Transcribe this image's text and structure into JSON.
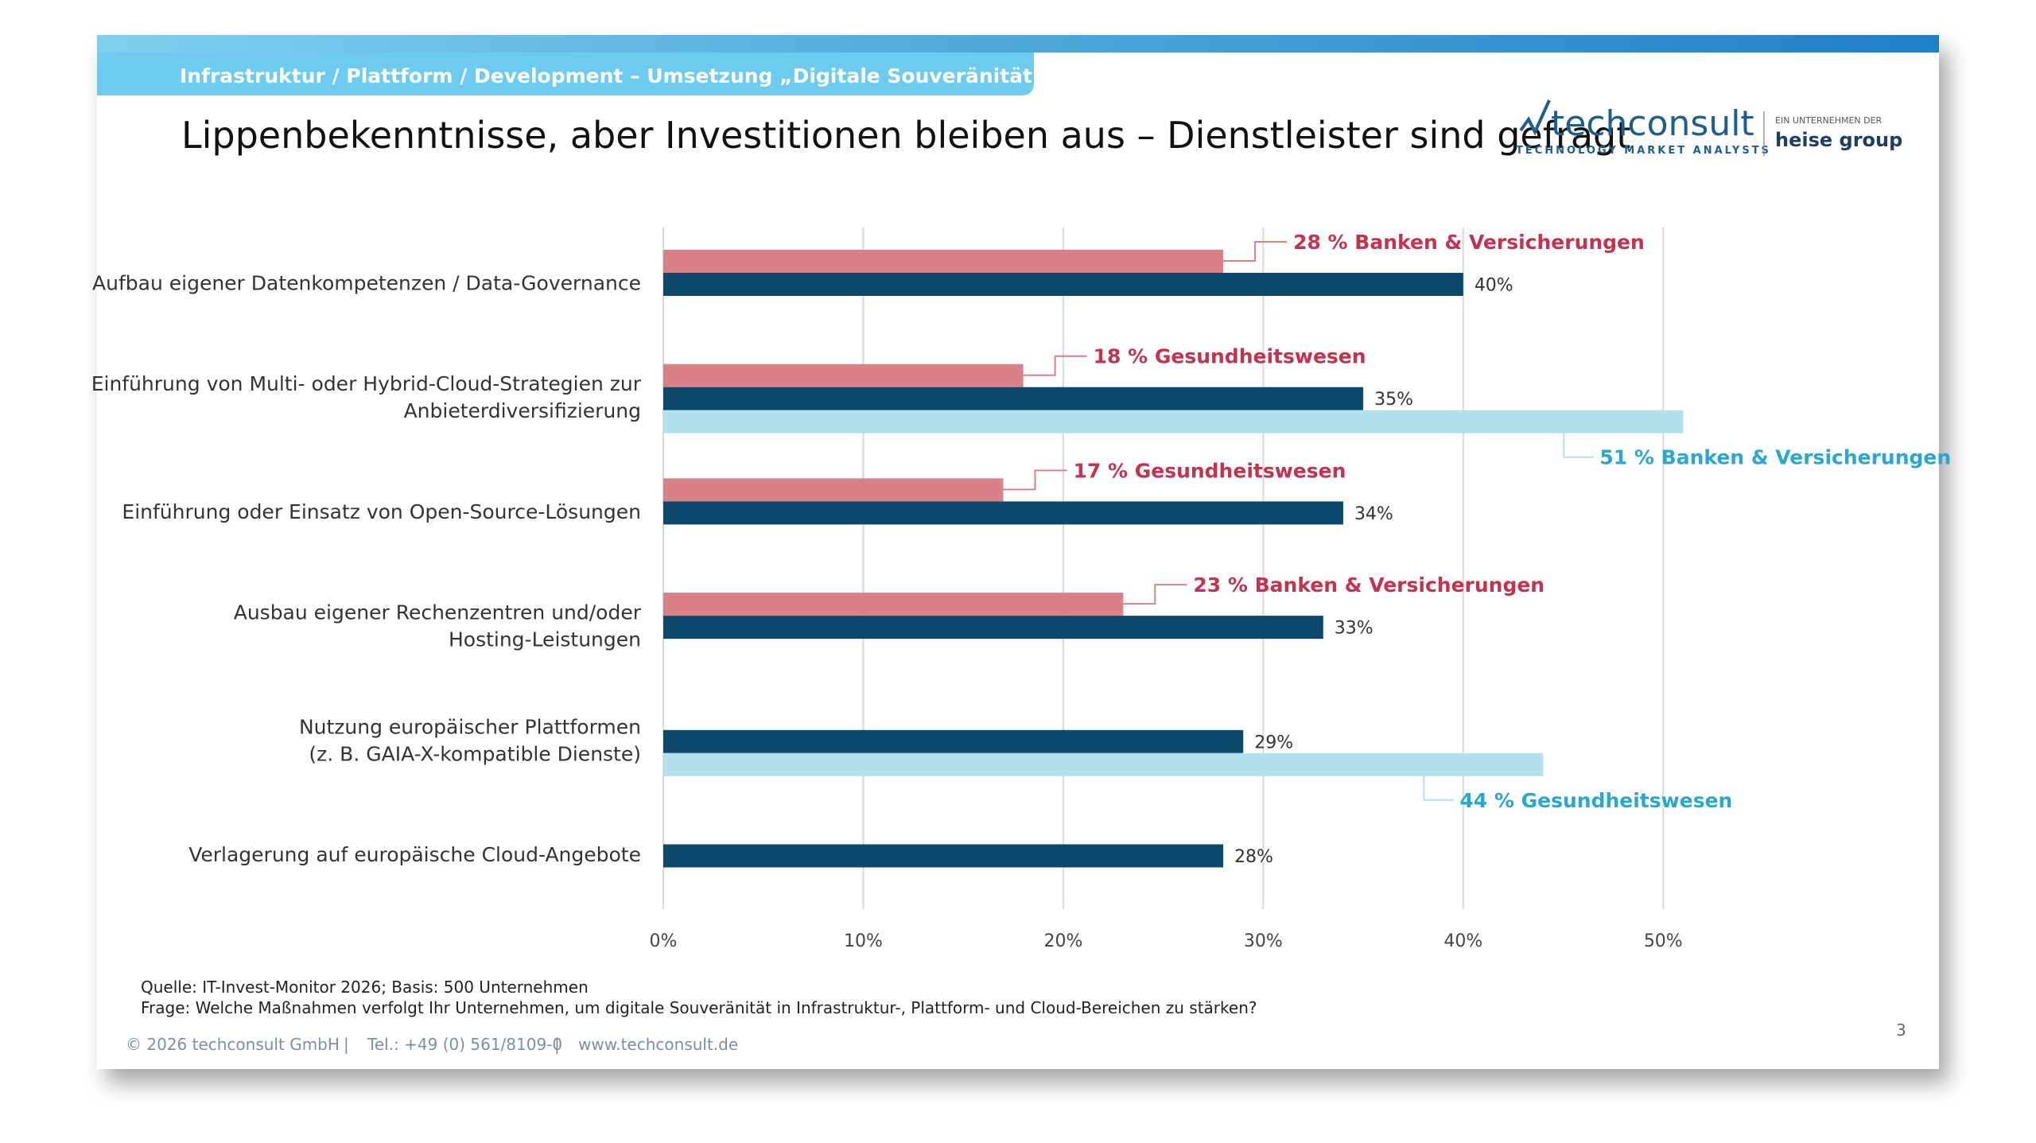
{
  "header": {
    "band": "Infrastruktur / Plattform / Development – Umsetzung „Digitale Souveränität“",
    "logo": "techconsult",
    "logo_tagline": "TECHNOLOGY MARKET ANALYSTS",
    "parent_note": "EIN UNTERNEHMEN DER",
    "parent": "heise group"
  },
  "chart_data": {
    "type": "hbar",
    "title": "Lippenbekenntnisse, aber Investitionen bleiben aus – Dienstleister sind gefragt",
    "categories": [
      [
        "Aufbau eigener Datenkompetenzen / Data-Governance"
      ],
      [
        "Einführung von Multi- oder Hybrid-Cloud-Strategien zur",
        "Anbieterdiversifizierung"
      ],
      [
        "Einführung oder Einsatz von Open-Source-Lösungen"
      ],
      [
        "Ausbau eigener Rechenzentren und/oder",
        "Hosting-Leistungen"
      ],
      [
        "Nutzung europäischer Plattformen",
        "(z. B. GAIA-X-kompatible Dienste)"
      ],
      [
        "Verlagerung auf europäische Cloud-Angebote"
      ]
    ],
    "series": [
      {
        "color": "#d98089",
        "label_color": "#c4324e",
        "values": [
          28,
          18,
          17,
          23,
          null,
          null
        ],
        "value_labels": [
          "28 % Banken & Versicherungen",
          "18 % Gesundheitswesen",
          "17 % Gesundheitswesen",
          "23 % Banken & Versicherungen",
          null,
          null
        ]
      },
      {
        "color": "#0c476c",
        "label_color": "#333333",
        "values": [
          40,
          35,
          34,
          33,
          29,
          28
        ],
        "value_labels": [
          "40%",
          "35%",
          "34%",
          "33%",
          "29%",
          "28%"
        ]
      },
      {
        "color": "#b2e0ec",
        "label_color": "#2aa7cf",
        "values": [
          null,
          51,
          null,
          null,
          44,
          null
        ],
        "value_labels": [
          null,
          "51 % Banken & Versicherungen",
          null,
          null,
          "44 % Gesundheitswesen",
          null
        ]
      }
    ],
    "xlim": [
      0,
      55
    ],
    "xticks": [
      {
        "value": 0,
        "label": "0%"
      },
      {
        "value": 10,
        "label": "10%"
      },
      {
        "value": 20,
        "label": "20%"
      },
      {
        "value": 30,
        "label": "30%"
      },
      {
        "value": 40,
        "label": "40%"
      },
      {
        "value": 50,
        "label": "50%"
      }
    ],
    "grid": true
  },
  "footer": {
    "source": "Quelle: IT-Invest-Monitor 2026; Basis: 500 Unternehmen",
    "question": "Frage: Welche Maßnahmen verfolgt Ihr Unternehmen, um digitale Souveränität in Infrastruktur-, Plattform- und Cloud-Bereichen zu stärken?",
    "copyright": "© 2026 techconsult GmbH",
    "phone": "Tel.: +49 (0) 561/8109-0",
    "web": "www.techconsult.de",
    "page": "3"
  }
}
